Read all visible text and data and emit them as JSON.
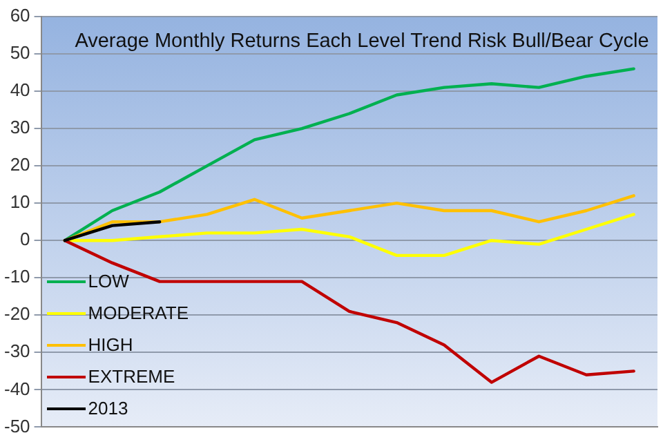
{
  "chart_data": {
    "type": "line",
    "title": "Average Monthly Returns Each Level Trend Risk Bull/Bear Cycle",
    "categories": [
      null,
      null,
      null,
      null,
      null,
      null,
      null,
      null,
      null,
      null,
      null,
      null,
      null
    ],
    "series": [
      {
        "name": "LOW",
        "color": "#00b050",
        "values": [
          0,
          8,
          13,
          20,
          27,
          30,
          34,
          39,
          41,
          42,
          41,
          44,
          46
        ]
      },
      {
        "name": "MODERATE",
        "color": "#ffff00",
        "values": [
          0,
          0,
          1,
          2,
          2,
          3,
          1,
          -4,
          -4,
          0,
          -1,
          3,
          7
        ]
      },
      {
        "name": "HIGH",
        "color": "#ffc000",
        "values": [
          0,
          5,
          5,
          7,
          11,
          6,
          8,
          10,
          8,
          8,
          5,
          8,
          12
        ]
      },
      {
        "name": "EXTREME",
        "color": "#c00000",
        "values": [
          0,
          -6,
          -11,
          -11,
          -11,
          -11,
          -19,
          -22,
          -28,
          -38,
          -31,
          -36,
          -35
        ]
      },
      {
        "name": "2013",
        "color": "#000000",
        "values": [
          0,
          4,
          5,
          null,
          null,
          null,
          null,
          null,
          null,
          null,
          null,
          null,
          null
        ]
      }
    ],
    "ylim": [
      -50,
      60
    ],
    "yticks": [
      -50,
      -40,
      -30,
      -20,
      -10,
      0,
      10,
      20,
      30,
      40,
      50,
      60
    ],
    "grid": "y",
    "legend": "bottom left",
    "marker": "none",
    "line_style": "solid",
    "tick_labels": "y"
  }
}
